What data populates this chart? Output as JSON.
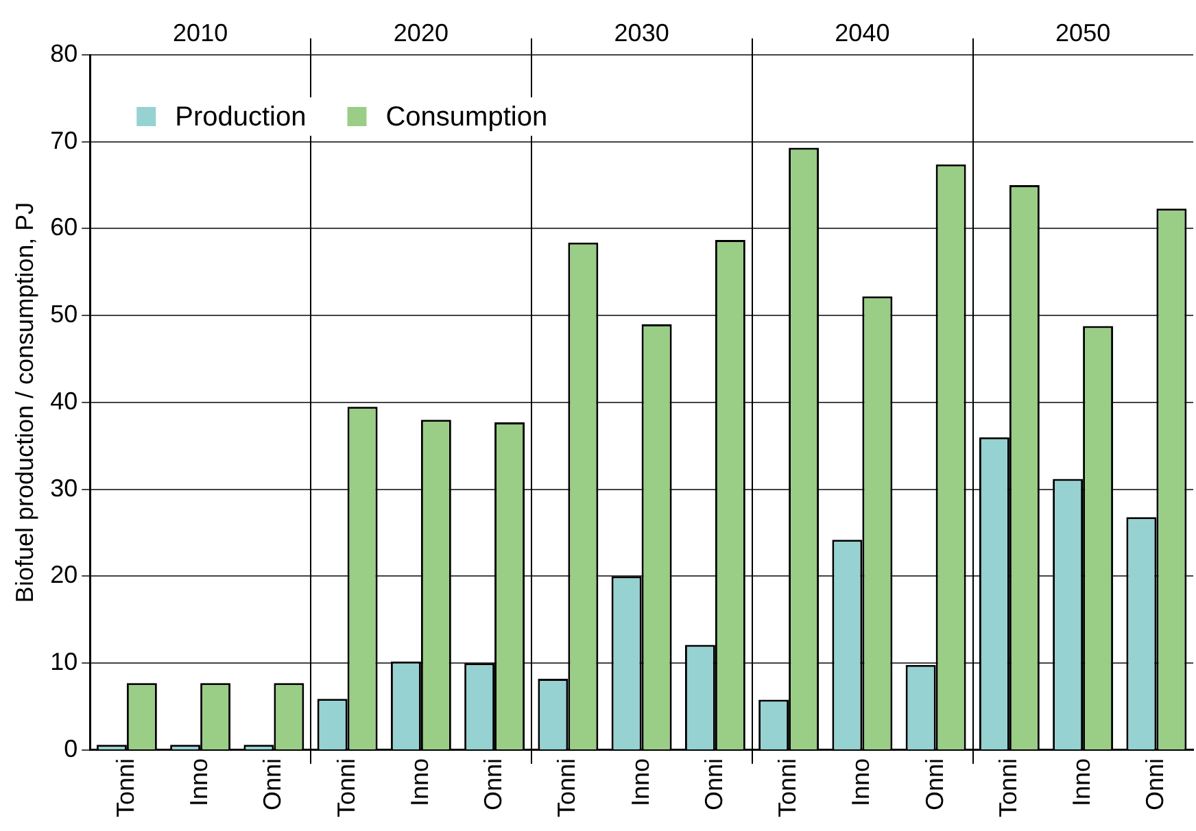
{
  "chart_data": {
    "type": "bar",
    "ylabel": "Biofuel production / consumption, PJ",
    "categories": [
      "Tonni",
      "Inno",
      "Onni",
      "Tonni",
      "Inno",
      "Onni",
      "Tonni",
      "Inno",
      "Onni",
      "Tonni",
      "Inno",
      "Onni",
      "Tonni",
      "Inno",
      "Onni"
    ],
    "series": [
      {
        "name": "Production",
        "color": "#96d2d2",
        "values": [
          0.6,
          0.6,
          0.6,
          5.9,
          10.2,
          10.0,
          8.2,
          20.0,
          12.1,
          5.8,
          24.2,
          9.8,
          36.0,
          31.2,
          26.8
        ]
      },
      {
        "name": "Consumption",
        "color": "#9acd85",
        "values": [
          7.7,
          7.7,
          7.7,
          39.5,
          38.0,
          37.7,
          58.4,
          49.0,
          58.7,
          69.3,
          52.2,
          67.4,
          65.0,
          48.8,
          62.3
        ]
      }
    ],
    "annotations": [
      "2010",
      "2020",
      "2030",
      "2040",
      "2050"
    ],
    "ylim": [
      0,
      80
    ],
    "yticks": [
      0,
      10,
      20,
      30,
      40,
      50,
      60,
      70,
      80
    ],
    "grid": "y",
    "legend": "top left"
  }
}
